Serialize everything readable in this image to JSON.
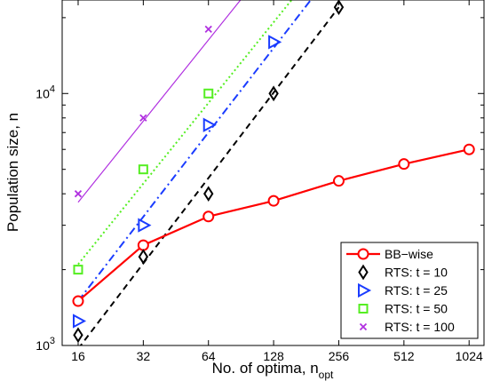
{
  "chart_data": {
    "type": "line",
    "xlabel": "No. of optima, n",
    "xlabel_sub": "opt",
    "ylabel": "Population size, n",
    "xscale": "log2",
    "yscale": "log10",
    "xlim": [
      13.5,
      1200
    ],
    "ylim": [
      1000,
      23500
    ],
    "x_ticks": [
      16,
      32,
      64,
      128,
      256,
      512,
      1024
    ],
    "x_tick_labels": [
      "16",
      "32",
      "64",
      "128",
      "256",
      "512",
      "1024"
    ],
    "y_tick_labels": [
      {
        "value": 1000,
        "base": "10",
        "exp": "3"
      },
      {
        "value": 10000,
        "base": "10",
        "exp": "4"
      }
    ],
    "legend_position": "bottom-right",
    "series": [
      {
        "name": "BB−wise",
        "color": "#ff0000",
        "marker": "circle",
        "line": "solid",
        "x": [
          16,
          32,
          64,
          128,
          256,
          512,
          1024
        ],
        "y": [
          1500,
          2500,
          3250,
          3750,
          4500,
          5250,
          6000
        ],
        "fit": null
      },
      {
        "name": "RTS: t = 10",
        "color": "#000000",
        "marker": "diamond",
        "line": "dashed",
        "x": [
          16,
          32,
          64,
          128,
          256
        ],
        "y": [
          1100,
          2250,
          4000,
          10000,
          22000
        ],
        "fit": {
          "x": [
            16,
            256
          ],
          "y": [
            970,
            22000
          ]
        }
      },
      {
        "name": "RTS: t = 25",
        "color": "#1a3cff",
        "marker": "triangle-right",
        "line": "dashdot",
        "x": [
          16,
          32,
          64,
          128
        ],
        "y": [
          1250,
          3000,
          7500,
          16000
        ],
        "fit": {
          "x": [
            16,
            190
          ],
          "y": [
            1500,
            23500
          ]
        }
      },
      {
        "name": "RTS: t = 50",
        "color": "#55ee22",
        "marker": "square",
        "line": "dotted",
        "x": [
          16,
          32,
          64
        ],
        "y": [
          2000,
          5000,
          10000
        ],
        "fit": {
          "x": [
            16,
            155
          ],
          "y": [
            2100,
            23500
          ]
        }
      },
      {
        "name": "RTS: t = 100",
        "color": "#b030e0",
        "marker": "x",
        "line": "solid",
        "x": [
          16,
          32,
          64
        ],
        "y": [
          4000,
          8000,
          18000
        ],
        "fit": {
          "x": [
            16,
            90
          ],
          "y": [
            3700,
            23500
          ]
        }
      }
    ]
  }
}
